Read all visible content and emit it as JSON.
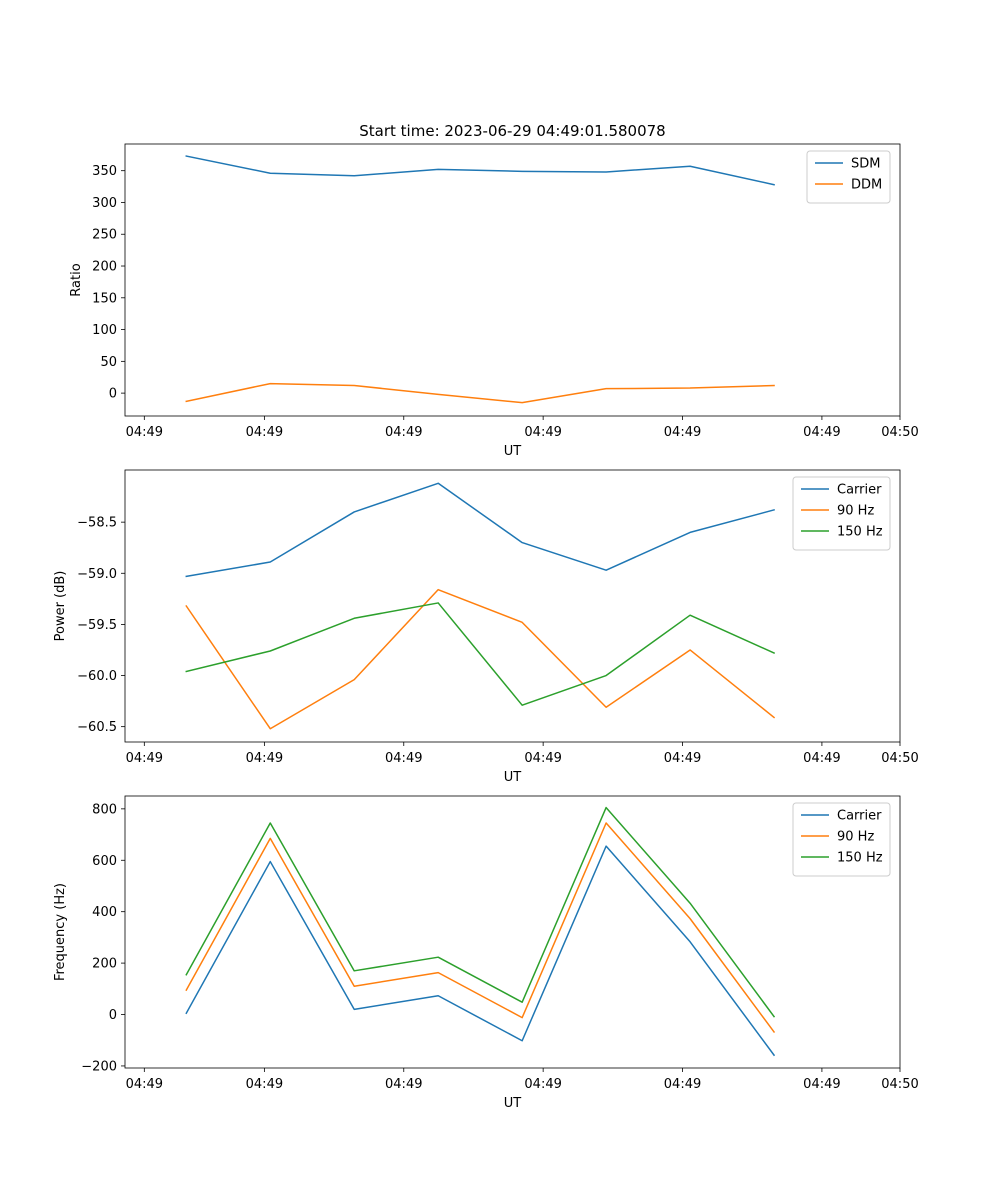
{
  "figure_title": "Start time: 2023-06-29 04:49:01.580078",
  "colors": {
    "blue": "#1f77b4",
    "orange": "#ff7f0e",
    "green": "#2ca02c"
  },
  "chart_data": [
    {
      "type": "line",
      "title": "Start time: 2023-06-29 04:49:01.580078",
      "xlabel": "UT",
      "ylabel": "Ratio",
      "x_tick_labels": [
        "04:49",
        "04:49",
        "04:49",
        "04:49",
        "04:49",
        "04:49",
        "04:50"
      ],
      "x": [
        1,
        2,
        3,
        4,
        5,
        6,
        7,
        8
      ],
      "xlim": [
        0.27,
        9.5
      ],
      "ylim": [
        -36,
        392
      ],
      "y_ticks": [
        0,
        50,
        100,
        150,
        200,
        250,
        300,
        350
      ],
      "grid": false,
      "legend_position": "top-right",
      "series": [
        {
          "name": "SDM",
          "color": "#1f77b4",
          "values": [
            373,
            346,
            342,
            352,
            349,
            348,
            357,
            328
          ]
        },
        {
          "name": "DDM",
          "color": "#ff7f0e",
          "values": [
            -13,
            15,
            12,
            -2,
            -15,
            7,
            8,
            12
          ]
        }
      ]
    },
    {
      "type": "line",
      "xlabel": "UT",
      "ylabel": "Power (dB)",
      "x_tick_labels": [
        "04:49",
        "04:49",
        "04:49",
        "04:49",
        "04:49",
        "04:49",
        "04:50"
      ],
      "x": [
        1,
        2,
        3,
        4,
        5,
        6,
        7,
        8
      ],
      "xlim": [
        0.27,
        9.5
      ],
      "ylim": [
        -60.65,
        -57.99
      ],
      "y_ticks": [
        -60.5,
        -60.0,
        -59.5,
        -59.0,
        -58.5
      ],
      "y_tick_labels": [
        "−60.5",
        "−60.0",
        "−59.5",
        "−59.0",
        "−58.5"
      ],
      "grid": false,
      "legend_position": "top-right",
      "series": [
        {
          "name": "Carrier",
          "color": "#1f77b4",
          "values": [
            -59.03,
            -58.89,
            -58.4,
            -58.12,
            -58.7,
            -58.97,
            -58.6,
            -58.38
          ]
        },
        {
          "name": "90 Hz",
          "color": "#ff7f0e",
          "values": [
            -59.32,
            -60.52,
            -60.04,
            -59.16,
            -59.48,
            -60.31,
            -59.75,
            -60.41
          ]
        },
        {
          "name": "150 Hz",
          "color": "#2ca02c",
          "values": [
            -59.96,
            -59.76,
            -59.44,
            -59.29,
            -60.29,
            -60.0,
            -59.41,
            -59.78
          ]
        }
      ]
    },
    {
      "type": "line",
      "xlabel": "UT",
      "ylabel": "Frequency (Hz)",
      "x_tick_labels": [
        "04:49",
        "04:49",
        "04:49",
        "04:49",
        "04:49",
        "04:49",
        "04:50"
      ],
      "x": [
        1,
        2,
        3,
        4,
        5,
        6,
        7,
        8
      ],
      "xlim": [
        0.27,
        9.5
      ],
      "ylim": [
        -208,
        850
      ],
      "y_ticks": [
        -200,
        0,
        200,
        400,
        600,
        800
      ],
      "y_tick_labels": [
        "−200",
        "0",
        "200",
        "400",
        "600",
        "800"
      ],
      "grid": false,
      "legend_position": "top-right",
      "series": [
        {
          "name": "Carrier",
          "color": "#1f77b4",
          "values": [
            5,
            595,
            20,
            73,
            -102,
            655,
            283,
            -158
          ]
        },
        {
          "name": "90 Hz",
          "color": "#ff7f0e",
          "values": [
            95,
            685,
            110,
            163,
            -12,
            745,
            373,
            -68
          ]
        },
        {
          "name": "150 Hz",
          "color": "#2ca02c",
          "values": [
            155,
            745,
            170,
            223,
            48,
            805,
            433,
            -8
          ]
        }
      ]
    }
  ]
}
